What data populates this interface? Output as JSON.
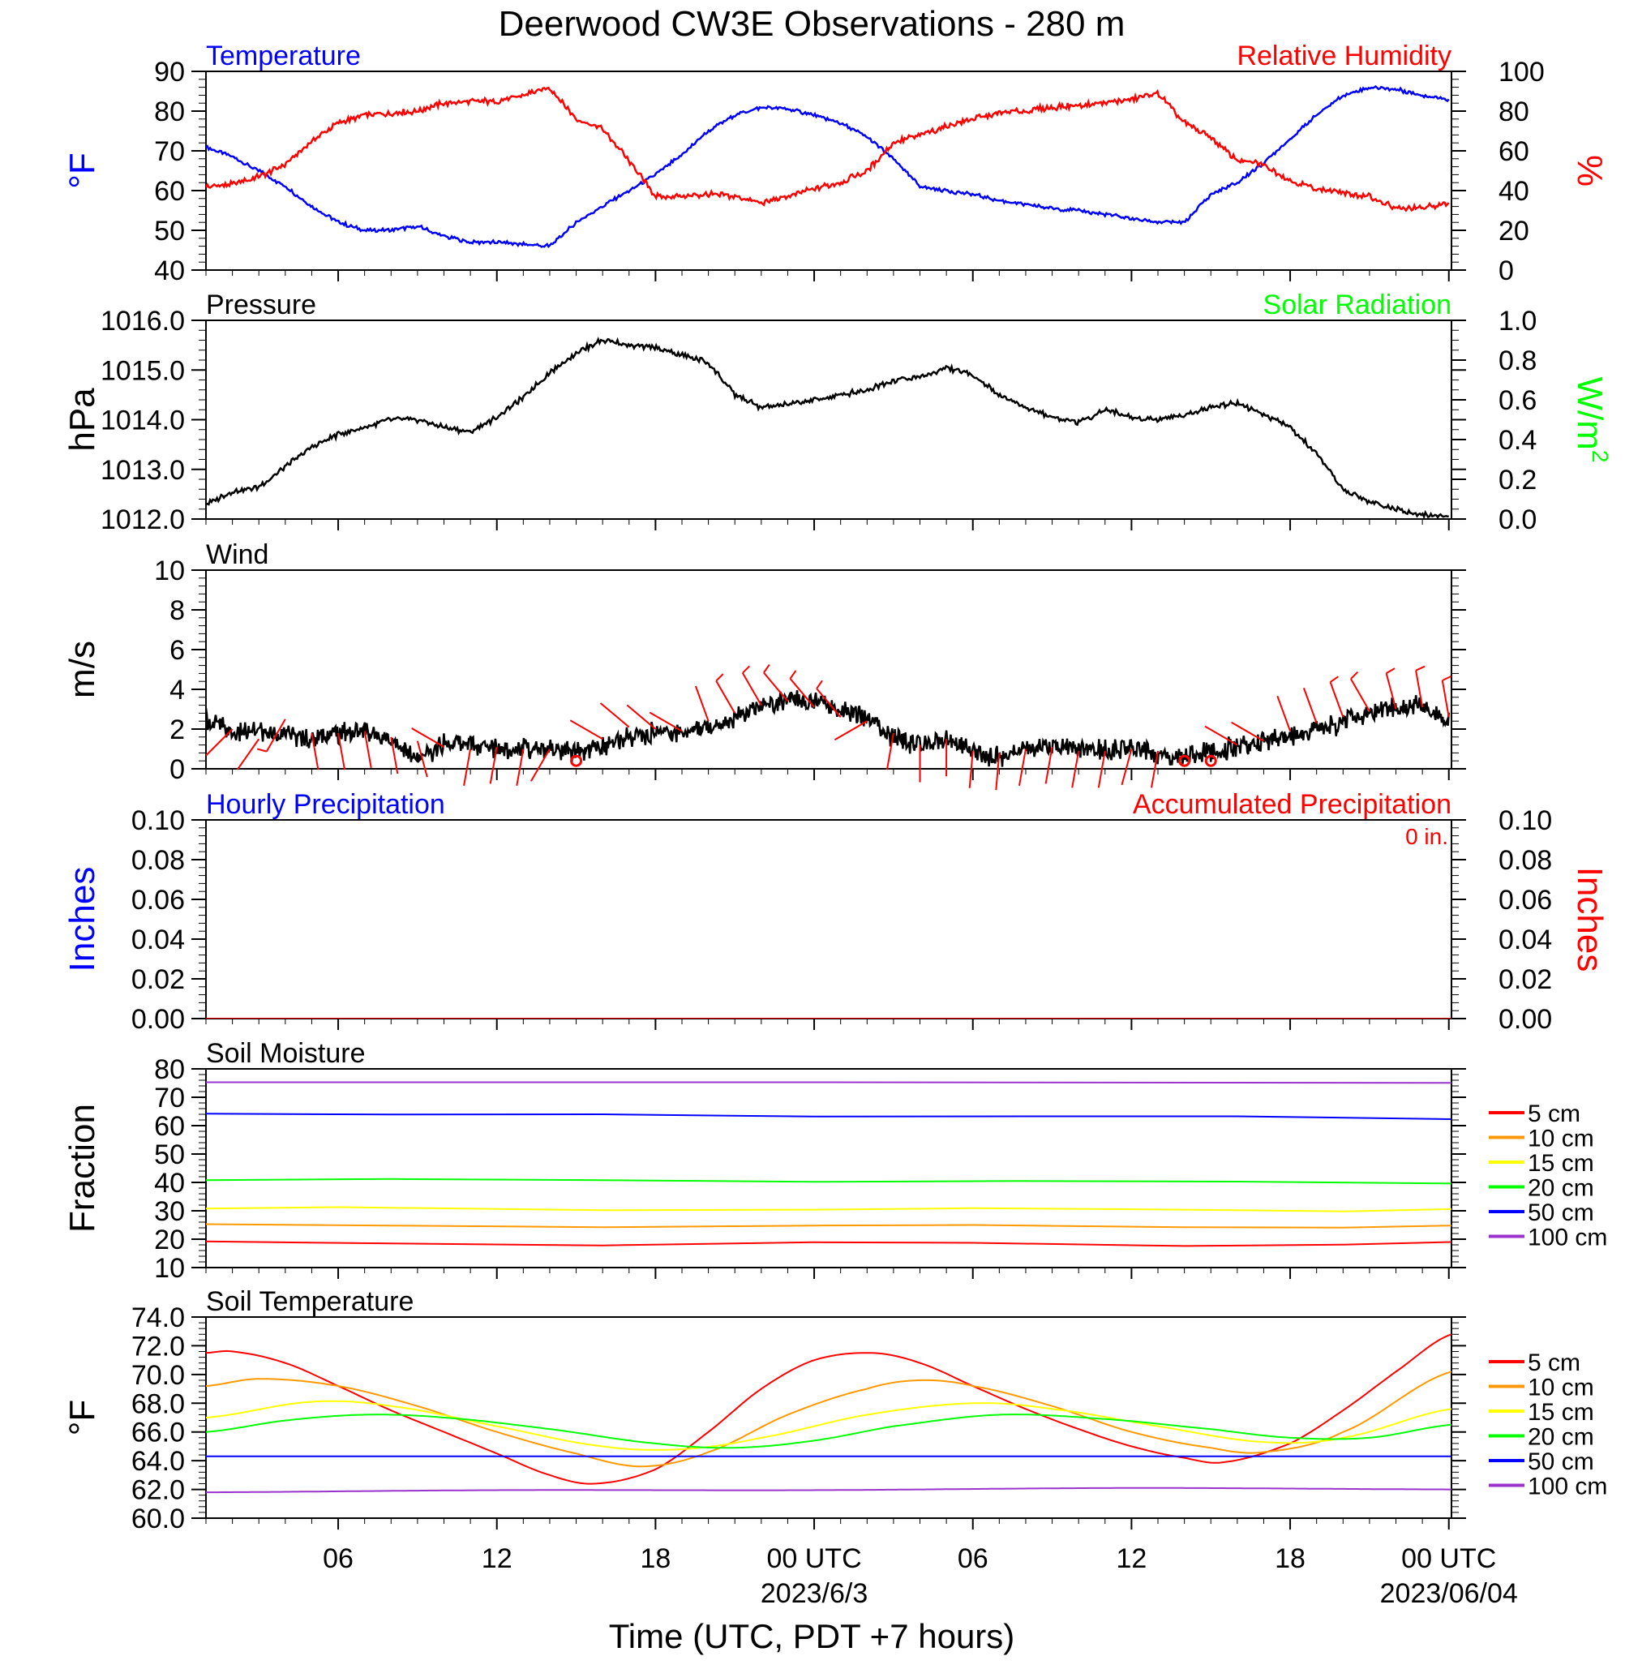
{
  "title": "Deerwood CW3E Observations - 280 m",
  "xlabel": "Time (UTC, PDT +7 hours)",
  "time_axis": {
    "start_hour": 1,
    "end_hour": 48.1,
    "ticks": [
      {
        "hour": 6,
        "label": "06"
      },
      {
        "hour": 12,
        "label": "12"
      },
      {
        "hour": 18,
        "label": "18"
      },
      {
        "hour": 24,
        "label": "00 UTC",
        "date": "2023/6/3"
      },
      {
        "hour": 30,
        "label": "06"
      },
      {
        "hour": 36,
        "label": "12"
      },
      {
        "hour": 42,
        "label": "18"
      },
      {
        "hour": 48,
        "label": "00 UTC",
        "date": "2023/06/04"
      }
    ]
  },
  "chart_data": [
    {
      "type": "line",
      "panel": "temperature-humidity",
      "title_left": "Temperature",
      "title_right": "Relative Humidity",
      "ylabel_left": "°F",
      "ylabel_right": "%",
      "ylim_left": [
        40,
        90
      ],
      "yticks_left": [
        "40",
        "50",
        "60",
        "70",
        "80",
        "90"
      ],
      "ylim_right": [
        0,
        100
      ],
      "yticks_right": [
        "0",
        "20",
        "40",
        "60",
        "80",
        "100"
      ],
      "series": [
        {
          "name": "Temperature",
          "axis": "left",
          "color": "#0000ff",
          "x": [
            1,
            2,
            3,
            4,
            5,
            6,
            7,
            8,
            9,
            10,
            11,
            12,
            13,
            14,
            15,
            16,
            17,
            18,
            19,
            20,
            21,
            22,
            23,
            24,
            25,
            26,
            27,
            28,
            29,
            30,
            31,
            32,
            33,
            34,
            35,
            36,
            37,
            38,
            39,
            40,
            41,
            42,
            43,
            44,
            45,
            46,
            47,
            48
          ],
          "y": [
            71,
            68.5,
            65,
            61,
            56,
            52,
            50,
            50,
            51,
            48.5,
            47,
            47,
            46.5,
            46,
            52,
            56,
            60,
            64,
            69,
            75,
            79,
            81,
            80.5,
            79,
            77,
            73.5,
            68,
            61,
            60,
            59,
            57.5,
            56.5,
            55.5,
            55,
            54,
            53,
            52,
            52,
            59,
            62,
            67,
            73,
            79,
            84,
            86,
            85.5,
            84,
            83
          ]
        },
        {
          "name": "Relative Humidity",
          "axis": "right",
          "color": "#ff0000",
          "x": [
            1,
            2,
            3,
            4,
            5,
            6,
            7,
            8,
            9,
            10,
            11,
            12,
            13,
            14,
            15,
            16,
            17,
            18,
            19,
            20,
            21,
            22,
            23,
            24,
            25,
            26,
            27,
            28,
            29,
            30,
            31,
            32,
            33,
            34,
            35,
            36,
            37,
            38,
            39,
            40,
            41,
            42,
            43,
            44,
            45,
            46,
            47,
            48
          ],
          "y": [
            42,
            43,
            47,
            53,
            65,
            74,
            78,
            79,
            80,
            84,
            85,
            85,
            88,
            92,
            76,
            71,
            55,
            37,
            37,
            38,
            37,
            34,
            37,
            41,
            44,
            50,
            64,
            68,
            72,
            76,
            79,
            80,
            82,
            83,
            84,
            86,
            89,
            74,
            67,
            55,
            53,
            45,
            41,
            39,
            37,
            31,
            31,
            34
          ]
        }
      ]
    },
    {
      "type": "line",
      "panel": "pressure-solar",
      "title_left": "Pressure",
      "title_right": "Solar Radiation",
      "ylabel_left": "hPa",
      "ylabel_right": "W/m2",
      "ylim_left": [
        1012.0,
        1016.0
      ],
      "yticks_left": [
        "1012.0",
        "1013.0",
        "1014.0",
        "1015.0",
        "1016.0"
      ],
      "ylim_right": [
        0.0,
        1.0
      ],
      "yticks_right": [
        "0.0",
        "0.2",
        "0.4",
        "0.6",
        "0.8",
        "1.0"
      ],
      "series": [
        {
          "name": "Pressure",
          "axis": "left",
          "color": "#000000",
          "x": [
            1,
            2,
            3,
            4,
            5,
            6,
            7,
            8,
            9,
            10,
            11,
            12,
            13,
            14,
            15,
            16,
            17,
            18,
            19,
            20,
            21,
            22,
            23,
            24,
            25,
            26,
            27,
            28,
            29,
            30,
            31,
            32,
            33,
            34,
            35,
            36,
            37,
            38,
            39,
            40,
            41,
            42,
            43,
            44,
            45,
            46,
            47,
            48
          ],
          "y": [
            1012.3,
            1012.55,
            1012.65,
            1013.05,
            1013.45,
            1013.7,
            1013.85,
            1014.0,
            1014.0,
            1013.85,
            1013.75,
            1014.05,
            1014.45,
            1014.95,
            1015.35,
            1015.6,
            1015.5,
            1015.45,
            1015.3,
            1015.15,
            1014.5,
            1014.25,
            1014.3,
            1014.4,
            1014.5,
            1014.6,
            1014.8,
            1014.85,
            1015.05,
            1014.9,
            1014.5,
            1014.25,
            1014.05,
            1013.95,
            1014.2,
            1014.05,
            1014.0,
            1014.1,
            1014.25,
            1014.35,
            1014.1,
            1013.85,
            1013.3,
            1012.6,
            1012.35,
            1012.2,
            1012.1,
            1012.05
          ]
        }
      ]
    },
    {
      "type": "line",
      "panel": "wind",
      "title_left": "Wind",
      "ylabel_left": "m/s",
      "ylim_left": [
        0,
        10
      ],
      "yticks_left": [
        "0",
        "2",
        "4",
        "6",
        "8",
        "10"
      ],
      "series": [
        {
          "name": "Wind",
          "axis": "left",
          "color": "#000000",
          "x": [
            1,
            2,
            3,
            4,
            5,
            6,
            7,
            8,
            9,
            10,
            11,
            12,
            13,
            14,
            15,
            16,
            17,
            18,
            19,
            20,
            21,
            22,
            23,
            24,
            25,
            26,
            27,
            28,
            29,
            30,
            31,
            32,
            33,
            34,
            35,
            36,
            37,
            38,
            39,
            40,
            41,
            42,
            43,
            44,
            45,
            46,
            47,
            48
          ],
          "y": [
            2.5,
            1.8,
            1.9,
            1.7,
            1.5,
            1.8,
            1.9,
            1.5,
            0.4,
            1.3,
            1.2,
            1.1,
            1.0,
            1.0,
            0.8,
            1.2,
            1.6,
            1.8,
            1.9,
            2.1,
            2.6,
            3.1,
            3.5,
            3.4,
            3.0,
            2.6,
            1.5,
            1.2,
            1.6,
            0.8,
            0.6,
            1.0,
            1.1,
            1.0,
            0.9,
            1.0,
            0.8,
            0.7,
            0.9,
            1.1,
            1.4,
            1.6,
            1.9,
            2.3,
            2.8,
            3.1,
            3.2,
            2.4
          ]
        }
      ],
      "barbs": {
        "x": [
          2,
          3,
          4,
          5,
          6,
          7,
          8,
          9,
          10,
          11,
          12,
          13,
          14,
          16,
          17,
          18,
          19,
          20,
          21,
          22,
          23,
          24,
          25,
          26,
          27,
          28,
          29,
          30,
          31,
          32,
          33,
          34,
          35,
          36,
          37,
          40,
          41,
          42,
          43,
          44,
          45,
          46,
          47,
          48
        ],
        "speed": [
          2.0,
          1.5,
          2.5,
          1.8,
          1.8,
          1.9,
          1.6,
          1.4,
          1.1,
          1.0,
          1.1,
          1.0,
          1.0,
          1.5,
          2.1,
          2.0,
          1.9,
          2.4,
          2.8,
          3.2,
          3.4,
          3.1,
          2.6,
          2.4,
          1.8,
          1.2,
          1.5,
          0.9,
          0.8,
          1.0,
          1.1,
          0.9,
          0.9,
          1.0,
          0.9,
          1.2,
          1.4,
          1.9,
          2.3,
          2.6,
          2.9,
          3.0,
          3.1,
          2.6
        ],
        "direction": [
          225,
          215,
          210,
          170,
          170,
          170,
          170,
          165,
          300,
          190,
          190,
          190,
          210,
          300,
          310,
          310,
          300,
          340,
          330,
          330,
          320,
          320,
          320,
          240,
          190,
          180,
          180,
          185,
          185,
          190,
          190,
          190,
          190,
          195,
          190,
          300,
          300,
          340,
          340,
          340,
          330,
          345,
          350,
          350
        ],
        "calm_x": [
          15,
          38,
          39
        ]
      }
    },
    {
      "type": "line",
      "panel": "precipitation",
      "title_left": "Hourly Precipitation",
      "title_right": "Accumulated Precipitation",
      "accumulated_total": "0 in.",
      "ylabel_left": "Inches",
      "ylabel_right": "Inches",
      "ylim_left": [
        0,
        0.1
      ],
      "yticks_left": [
        "0.00",
        "0.02",
        "0.04",
        "0.06",
        "0.08",
        "0.10"
      ],
      "ylim_right": [
        0,
        0.1
      ],
      "yticks_right": [
        "0.00",
        "0.02",
        "0.04",
        "0.06",
        "0.08",
        "0.10"
      ],
      "series": [
        {
          "name": "Hourly Precipitation",
          "axis": "left",
          "color": "#0000ff",
          "x": [
            1,
            48.1
          ],
          "y": [
            0,
            0
          ]
        },
        {
          "name": "Accumulated Precipitation",
          "axis": "right",
          "color": "#ff0000",
          "x": [
            1,
            48.1
          ],
          "y": [
            0,
            0
          ]
        }
      ]
    },
    {
      "type": "line",
      "panel": "soil-moisture",
      "title_left": "Soil Moisture",
      "ylabel_left": "Fraction",
      "ylim_left": [
        10,
        80
      ],
      "yticks_left": [
        "10",
        "20",
        "30",
        "40",
        "50",
        "60",
        "70",
        "80"
      ],
      "series": [
        {
          "name": "5 cm",
          "color": "#ff0000",
          "x": [
            1,
            8,
            16,
            24,
            30,
            38,
            44,
            48.1
          ],
          "y": [
            19.2,
            18.5,
            17.8,
            18.9,
            18.7,
            17.6,
            18.1,
            19.0
          ]
        },
        {
          "name": "10 cm",
          "color": "#ff9900",
          "x": [
            1,
            8,
            16,
            24,
            30,
            38,
            44,
            48.1
          ],
          "y": [
            25.3,
            24.8,
            24.2,
            24.8,
            25.0,
            24.2,
            24.1,
            24.8
          ]
        },
        {
          "name": "15 cm",
          "color": "#ffff00",
          "x": [
            1,
            6,
            16,
            24,
            30,
            38,
            44,
            48.1
          ],
          "y": [
            30.8,
            31.3,
            30.2,
            30.4,
            30.9,
            30.4,
            29.8,
            30.6
          ]
        },
        {
          "name": "20 cm",
          "color": "#00ff00",
          "x": [
            1,
            8,
            16,
            24,
            32,
            40,
            48.1
          ],
          "y": [
            40.8,
            41.2,
            40.8,
            40.2,
            40.5,
            40.3,
            39.6
          ]
        },
        {
          "name": "50 cm",
          "color": "#0000ff",
          "x": [
            1,
            8,
            16,
            24,
            32,
            40,
            48.1
          ],
          "y": [
            64.2,
            63.9,
            64.0,
            63.2,
            63.3,
            63.3,
            62.3
          ]
        },
        {
          "name": "100 cm",
          "color": "#9933cc",
          "x": [
            1,
            24,
            48.1
          ],
          "y": [
            75.3,
            75.3,
            75.1
          ]
        }
      ]
    },
    {
      "type": "line",
      "panel": "soil-temperature",
      "title_left": "Soil Temperature",
      "ylabel_left": "°F",
      "ylim_left": [
        60.0,
        74.0
      ],
      "yticks_left": [
        "60.0",
        "62.0",
        "64.0",
        "66.0",
        "68.0",
        "70.0",
        "72.0",
        "74.0"
      ],
      "series": [
        {
          "name": "5 cm",
          "color": "#ff0000",
          "x": [
            1,
            2,
            4,
            6,
            8,
            10,
            12,
            14,
            15.7,
            18,
            20,
            22,
            24,
            26.2,
            28,
            30,
            32,
            34,
            36,
            38,
            39.5,
            42,
            44,
            46,
            48.1
          ],
          "y": [
            71.5,
            71.6,
            70.8,
            69.2,
            67.5,
            66.0,
            64.5,
            63.0,
            62.4,
            63.4,
            66.0,
            69.0,
            71.0,
            71.5,
            70.8,
            69.2,
            67.6,
            66.2,
            65.0,
            64.2,
            63.9,
            65.2,
            67.5,
            70.2,
            72.8
          ]
        },
        {
          "name": "10 cm",
          "color": "#ff9900",
          "x": [
            1,
            3,
            6,
            9,
            12,
            15,
            17.5,
            20,
            23,
            26,
            28,
            30,
            33,
            36,
            39,
            41,
            44,
            48.1
          ],
          "y": [
            69.2,
            69.7,
            69.2,
            67.8,
            66.0,
            64.5,
            63.6,
            64.6,
            67.2,
            69.0,
            69.6,
            69.2,
            67.8,
            66.0,
            64.9,
            64.6,
            66.0,
            70.2
          ]
        },
        {
          "name": "15 cm",
          "color": "#ffff00",
          "x": [
            1,
            5,
            8,
            12,
            16,
            19,
            22,
            26,
            30,
            33,
            37,
            41,
            44,
            48.1
          ],
          "y": [
            67.0,
            68.1,
            67.8,
            66.4,
            65.0,
            64.8,
            65.6,
            67.2,
            68.0,
            67.6,
            66.4,
            65.3,
            65.6,
            67.6
          ]
        },
        {
          "name": "20 cm",
          "color": "#00ff00",
          "x": [
            1,
            4,
            7,
            10,
            14,
            18,
            21,
            24,
            27,
            31,
            35,
            39,
            42,
            45,
            48.1
          ],
          "y": [
            66.0,
            66.8,
            67.2,
            67.0,
            66.2,
            65.2,
            64.9,
            65.4,
            66.4,
            67.2,
            66.9,
            66.2,
            65.6,
            65.6,
            66.5
          ]
        },
        {
          "name": "50 cm",
          "color": "#0000ff",
          "x": [
            1,
            12,
            24,
            36,
            48.1
          ],
          "y": [
            64.3,
            64.3,
            64.3,
            64.3,
            64.3
          ]
        },
        {
          "name": "100 cm",
          "color": "#9933cc",
          "x": [
            1,
            12,
            24,
            36,
            48.1
          ],
          "y": [
            61.8,
            61.95,
            61.95,
            62.1,
            62.0
          ]
        }
      ]
    }
  ]
}
